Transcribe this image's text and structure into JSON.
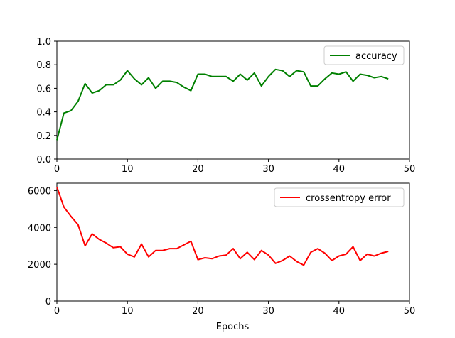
{
  "chart_data": [
    {
      "type": "line",
      "title": "",
      "xlabel": "",
      "ylabel": "",
      "xlim": [
        0,
        50
      ],
      "ylim": [
        0,
        1.0
      ],
      "xticks": [
        "0",
        "10",
        "20",
        "30",
        "40",
        "50"
      ],
      "yticks": [
        "0.0",
        "0.2",
        "0.4",
        "0.6",
        "0.8",
        "1.0"
      ],
      "grid": false,
      "legend_position": "top-right",
      "series": [
        {
          "name": "accuracy",
          "color": "#008000",
          "x": [
            0,
            1,
            2,
            3,
            4,
            5,
            6,
            7,
            8,
            9,
            10,
            11,
            12,
            13,
            14,
            15,
            16,
            17,
            18,
            19,
            20,
            21,
            22,
            23,
            24,
            25,
            26,
            27,
            28,
            29,
            30,
            31,
            32,
            33,
            34,
            35,
            36,
            37,
            38,
            39,
            40,
            41,
            42,
            43,
            44,
            45,
            46,
            47
          ],
          "values": [
            0.16,
            0.39,
            0.41,
            0.49,
            0.64,
            0.56,
            0.58,
            0.63,
            0.63,
            0.67,
            0.75,
            0.68,
            0.63,
            0.69,
            0.6,
            0.66,
            0.66,
            0.65,
            0.61,
            0.58,
            0.72,
            0.72,
            0.7,
            0.7,
            0.7,
            0.66,
            0.72,
            0.67,
            0.73,
            0.62,
            0.7,
            0.76,
            0.75,
            0.7,
            0.75,
            0.74,
            0.62,
            0.62,
            0.68,
            0.73,
            0.72,
            0.74,
            0.66,
            0.72,
            0.71,
            0.69,
            0.7,
            0.68
          ]
        }
      ]
    },
    {
      "type": "line",
      "title": "",
      "xlabel": "Epochs",
      "ylabel": "",
      "xlim": [
        0,
        50
      ],
      "ylim": [
        0,
        6400
      ],
      "xticks": [
        "0",
        "10",
        "20",
        "30",
        "40",
        "50"
      ],
      "yticks": [
        "0",
        "2000",
        "4000",
        "6000"
      ],
      "grid": false,
      "legend_position": "top-right",
      "series": [
        {
          "name": "crossentropy error",
          "color": "#ff0000",
          "x": [
            0,
            1,
            2,
            3,
            4,
            5,
            6,
            7,
            8,
            9,
            10,
            11,
            12,
            13,
            14,
            15,
            16,
            17,
            18,
            19,
            20,
            21,
            22,
            23,
            24,
            25,
            26,
            27,
            28,
            29,
            30,
            31,
            32,
            33,
            34,
            35,
            36,
            37,
            38,
            39,
            40,
            41,
            42,
            43,
            44,
            45,
            46,
            47
          ],
          "values": [
            6200,
            5100,
            4600,
            4150,
            3000,
            3650,
            3350,
            3150,
            2900,
            2950,
            2550,
            2400,
            3100,
            2400,
            2750,
            2750,
            2850,
            2850,
            3050,
            3250,
            2250,
            2350,
            2300,
            2450,
            2500,
            2850,
            2300,
            2650,
            2250,
            2750,
            2500,
            2050,
            2200,
            2450,
            2150,
            1950,
            2650,
            2850,
            2600,
            2200,
            2450,
            2550,
            2950,
            2200,
            2550,
            2450,
            2600,
            2700
          ]
        }
      ]
    }
  ]
}
